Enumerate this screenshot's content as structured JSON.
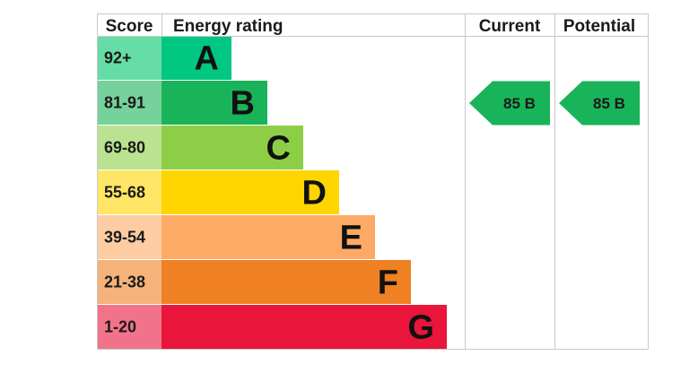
{
  "headers": {
    "score": "Score",
    "rating": "Energy rating",
    "current": "Current",
    "potential": "Potential"
  },
  "chart_data": {
    "type": "bar",
    "categories": [
      "A",
      "B",
      "C",
      "D",
      "E",
      "F",
      "G"
    ],
    "score_ranges": [
      "92+",
      "81-91",
      "69-80",
      "55-68",
      "39-54",
      "21-38",
      "1-20"
    ],
    "values": [
      1,
      2,
      3,
      4,
      5,
      6,
      7
    ],
    "colors": [
      "#00c781",
      "#19b459",
      "#8dce46",
      "#ffd500",
      "#fcaa65",
      "#ef8023",
      "#e9153b"
    ],
    "score_colors": [
      "#66dda7",
      "#75d29b",
      "#bbe290",
      "#ffe666",
      "#fdcca3",
      "#f5b37b",
      "#f27389"
    ],
    "current": {
      "value": 85,
      "band": "B",
      "label": "85  B"
    },
    "potential": {
      "value": 85,
      "band": "B",
      "label": "85  B"
    }
  }
}
